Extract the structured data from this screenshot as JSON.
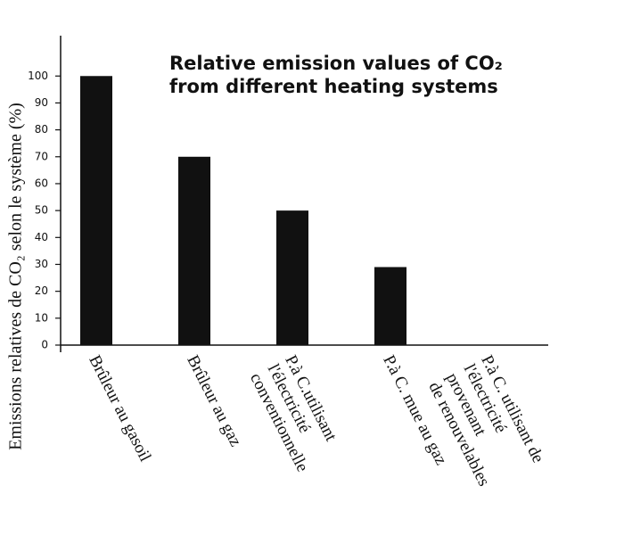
{
  "chart_data": {
    "type": "bar",
    "title": "Relative emission values of CO₂\nfrom different heating systems",
    "y_label": "Emissions relatives de CO₂ selon le système (%)",
    "categories": [
      "Brûleur au gasoil",
      "Brûleur au gaz",
      "P.à C.utilisant\nl'électricité\nconventionnelle",
      "P.à C. mue au gaz",
      "P.à C. utilisant de\nl'électricité provenant\nde renouvelables"
    ],
    "values": [
      100,
      70,
      50,
      29,
      0
    ],
    "color": "#111111",
    "ylim": [
      0,
      115
    ],
    "yticks": [
      0,
      10,
      20,
      30,
      40,
      50,
      60,
      70,
      80,
      90,
      100
    ],
    "grid": false
  }
}
